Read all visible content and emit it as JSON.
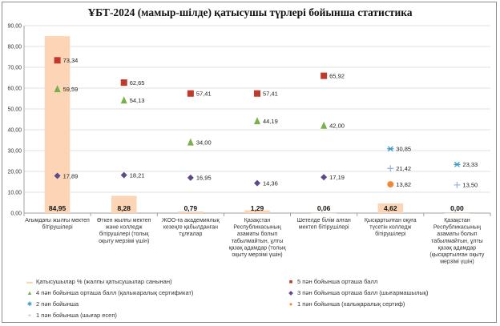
{
  "chart_data": {
    "type": "bar",
    "title": "ҰБТ-2024 (мамыр-шілде) қатысушы  түрлері бойынша статистика",
    "ylim": [
      0,
      90
    ],
    "yticks": [
      "0,00",
      "10,00",
      "20,00",
      "30,00",
      "40,00",
      "50,00",
      "60,00",
      "70,00",
      "80,00",
      "90,00"
    ],
    "grid": true,
    "legend_position": "bottom",
    "categories": [
      "Ағымдағы жылғы мектеп бітірушілері",
      "Өткен жылғы мектеп және колледж бітірушілері (толық оқыту мерзімі үшін)",
      "ЖОО-ға академиялық кезеңге қабылданған тұлғалар",
      "Қазақстан Республикасының азаматы болып табылмайтын, ұлты қазақ адамдар (толық оқыту мерзімі үшін)",
      "Шетелде білім алған мектеп бітірушілері",
      "Қысқартылған оқуға түсетін колледж бітірушілері",
      "Қазақстан Республикасының азаматы болып табылмайтын, ұлты қазақ адамдар (қысқартылған оқыту мерзімі үшін)"
    ],
    "series": [
      {
        "name": "Қатысушылар %  (жалпы қатысушылар санынан)",
        "kind": "bar",
        "color": "#fbd5b5",
        "values": [
          84.95,
          8.28,
          0.79,
          1.29,
          0.06,
          4.62,
          0.0
        ],
        "labels": [
          "84,95",
          "8,28",
          "0,79",
          "1,29",
          "0,06",
          "4,62",
          "0,00"
        ]
      },
      {
        "name": "5 пән бойынша орташа балл",
        "kind": "square",
        "color": "#c0392b",
        "values": [
          73.34,
          62.65,
          57.41,
          57.41,
          65.92,
          null,
          null
        ],
        "labels": [
          "73,34",
          "62,65",
          "57,41",
          "57,41",
          "65,92",
          "",
          ""
        ]
      },
      {
        "name": "4 пән бойынша орташа балл (қалыкаралық  сертификат)",
        "kind": "triangle",
        "color": "#78b04a",
        "values": [
          59.59,
          54.13,
          34.0,
          44.19,
          42.0,
          null,
          null
        ],
        "labels": [
          "59,59",
          "54,13",
          "34,00",
          "44,19",
          "42,00",
          "",
          ""
        ]
      },
      {
        "name": "3 пән бойынша орташа балл (шығармашылық)",
        "kind": "diamond",
        "color": "#5e4a8b",
        "values": [
          17.89,
          18.21,
          16.95,
          14.36,
          17.19,
          null,
          null
        ],
        "labels": [
          "17,89",
          "18,21",
          "16,95",
          "14,36",
          "17,19",
          "",
          ""
        ]
      },
      {
        "name": "2 пән бойынша",
        "kind": "star",
        "color": "#3a9ac4",
        "values": [
          null,
          null,
          null,
          null,
          null,
          30.85,
          23.33
        ],
        "labels": [
          "",
          "",
          "",
          "",
          "",
          "30,85",
          "23,33"
        ]
      },
      {
        "name": "1 пән бойынша (халықаралық  сертиф)",
        "kind": "circle",
        "color": "#f0883a",
        "values": [
          null,
          null,
          null,
          null,
          null,
          13.82,
          null
        ],
        "labels": [
          "",
          "",
          "",
          "",
          "",
          "13,82",
          ""
        ]
      },
      {
        "name": "1 пән бойынша (шығар есеп)",
        "kind": "plus",
        "color": "#9db6dd",
        "values": [
          null,
          null,
          null,
          null,
          null,
          21.42,
          13.5
        ],
        "labels": [
          "",
          "",
          "",
          "",
          "",
          "21,42",
          "13,50"
        ]
      }
    ]
  }
}
